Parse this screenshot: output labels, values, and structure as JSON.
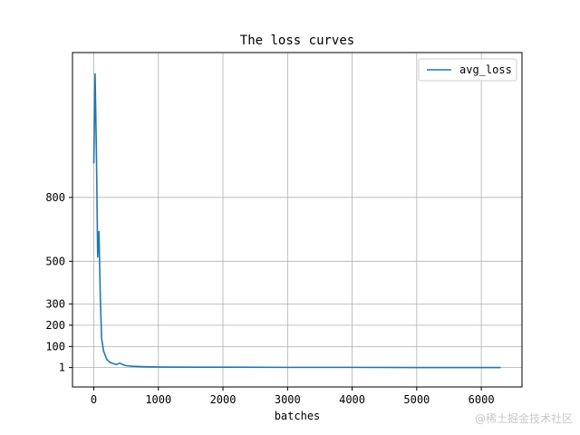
{
  "chart_data": {
    "type": "line",
    "title": "The loss curves",
    "xlabel": "batches",
    "ylabel": "",
    "xlim": [
      -330,
      6630
    ],
    "ylim": [
      -90,
      1480
    ],
    "xticks": [
      0,
      1000,
      2000,
      3000,
      4000,
      5000,
      6000
    ],
    "xtick_labels": [
      "0",
      "1000",
      "2000",
      "3000",
      "4000",
      "5000",
      "6000"
    ],
    "yticks": [
      1,
      100,
      200,
      300,
      500,
      800
    ],
    "ytick_labels": [
      "1",
      "100",
      "200",
      "300",
      "500",
      "800"
    ],
    "grid": true,
    "legend_position": "top-right",
    "series": [
      {
        "name": "avg_loss",
        "color": "#1f77b4",
        "x": [
          0,
          20,
          40,
          60,
          80,
          100,
          120,
          150,
          200,
          250,
          300,
          350,
          400,
          450,
          500,
          600,
          800,
          1000,
          1500,
          2000,
          3000,
          4000,
          5000,
          6000,
          6300
        ],
        "y": [
          960,
          1380,
          1020,
          520,
          640,
          340,
          140,
          80,
          40,
          25,
          20,
          15,
          22,
          15,
          10,
          7,
          5,
          4,
          3,
          3,
          2,
          2,
          1,
          1,
          1
        ]
      }
    ]
  },
  "watermark": "@稀土掘金技术社区"
}
